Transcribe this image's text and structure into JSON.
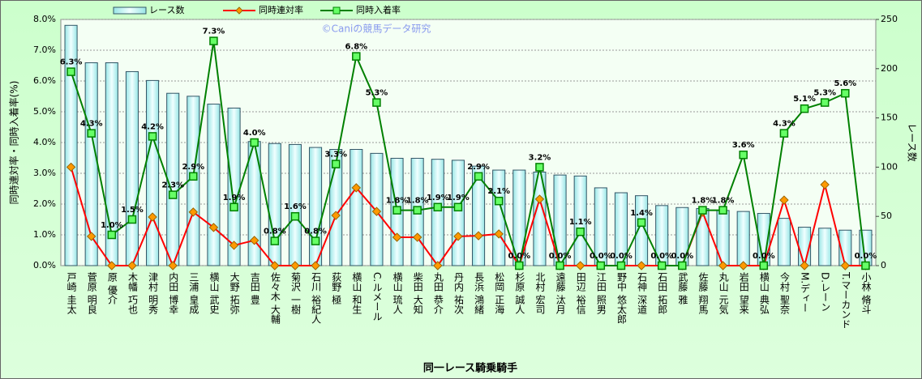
{
  "chart_data": {
    "type": "bar",
    "x_label": "同一レース騎乗騎手",
    "y_label": "同時連対率・同時入着率(%)",
    "y2_label": "レース数",
    "annotation": "©Caniの競馬データ研究",
    "categories": [
      "戸崎 圭太",
      "菅原 明良",
      "原 優介",
      "木幡 巧也",
      "津村 明秀",
      "内田 博幸",
      "三浦 皇成",
      "横山 武史",
      "大野 拓弥",
      "吉田 豊",
      "佐々木 大輔",
      "菊沢 一樹",
      "石川 裕紀人",
      "荻野 極",
      "横山 和生",
      "C.ルメール",
      "横山 琉人",
      "柴田 大知",
      "丸田 恭介",
      "丹内 祐次",
      "長浜 鴻緒",
      "松岡 正海",
      "杉原 誠人",
      "北村 宏司",
      "遠藤 汰月",
      "田辺 裕信",
      "江田 照男",
      "野中 悠太郎",
      "石神 深道",
      "石田 拓郎",
      "武藤 雅",
      "佐藤 翔馬",
      "丸山 元気",
      "岩田 望来",
      "横山 典弘",
      "今村 聖奈",
      "M.ディー",
      "D.レーン",
      "T.マーカンド",
      "小林 脩斗"
    ],
    "series": [
      {
        "name": "レース数",
        "type": "bar",
        "axis": "y2",
        "color": "#ccffff",
        "values": [
          244,
          206,
          206,
          197,
          188,
          175,
          172,
          164,
          160,
          126,
          124,
          123,
          120,
          118,
          118,
          114,
          109,
          109,
          108,
          107,
          101,
          97,
          97,
          95,
          92,
          91,
          79,
          74,
          71,
          61,
          59,
          58,
          56,
          55,
          53,
          48,
          39,
          38,
          36,
          36
        ]
      },
      {
        "name": "同時連対率",
        "type": "line",
        "color": "#ff0000",
        "marker_color": "#ff9900",
        "values": [
          3.2,
          0.95,
          0,
          0,
          1.58,
          0,
          1.74,
          1.24,
          0.66,
          0.82,
          0,
          0,
          0,
          1.63,
          2.53,
          1.76,
          0.92,
          0.92,
          0,
          0.95,
          0.97,
          1.03,
          0,
          2.16,
          0,
          0,
          0,
          0,
          0,
          0,
          0,
          1.74,
          0,
          0,
          0,
          2.13,
          0,
          2.63,
          0,
          0
        ]
      },
      {
        "name": "同時入着率",
        "type": "line",
        "color": "#008000",
        "marker_color": "#66ff66",
        "values": [
          6.3,
          4.3,
          1.0,
          1.5,
          4.2,
          2.3,
          2.9,
          7.3,
          1.9,
          4.0,
          0.8,
          1.6,
          0.8,
          3.3,
          6.8,
          5.3,
          1.8,
          1.8,
          1.9,
          1.9,
          2.9,
          2.1,
          0.0,
          3.2,
          0.0,
          1.1,
          0.0,
          0.0,
          1.4,
          0.0,
          0.0,
          1.8,
          1.8,
          3.6,
          0.0,
          4.3,
          5.1,
          5.3,
          5.6,
          0.0
        ],
        "value_labels": [
          "6.3%",
          "4.3%",
          "1.0%",
          "1.5%",
          "4.2%",
          "2.3%",
          "2.9%",
          "7.3%",
          "1.9%",
          "4.0%",
          "0.8%",
          "1.6%",
          "0.8%",
          "3.3%",
          "6.8%",
          "5.3%",
          "1.8%",
          "1.8%",
          "1.9%",
          "1.9%",
          "2.9%",
          "2.1%",
          "0.0%",
          "3.2%",
          "0.0%",
          "1.1%",
          "0.0%",
          "0.0%",
          "1.4%",
          "0.0%",
          "0.0%",
          "1.8%",
          "1.8%",
          "3.6%",
          "0.0%",
          "4.3%",
          "5.1%",
          "5.3%",
          "5.6%",
          "0.0%"
        ]
      }
    ],
    "ylim": [
      0,
      8
    ],
    "yticks": [
      {
        "value": 0,
        "label": "0.0%"
      },
      {
        "value": 1,
        "label": "1.0%"
      },
      {
        "value": 2,
        "label": "2.0%"
      },
      {
        "value": 3,
        "label": "3.0%"
      },
      {
        "value": 4,
        "label": "4.0%"
      },
      {
        "value": 5,
        "label": "5.0%"
      },
      {
        "value": 6,
        "label": "6.0%"
      },
      {
        "value": 7,
        "label": "7.0%"
      },
      {
        "value": 8,
        "label": "8.0%"
      }
    ],
    "y2lim": [
      0,
      250
    ],
    "y2ticks": [
      0,
      50,
      100,
      150,
      200,
      250
    ],
    "grid": true,
    "legend": "top"
  }
}
